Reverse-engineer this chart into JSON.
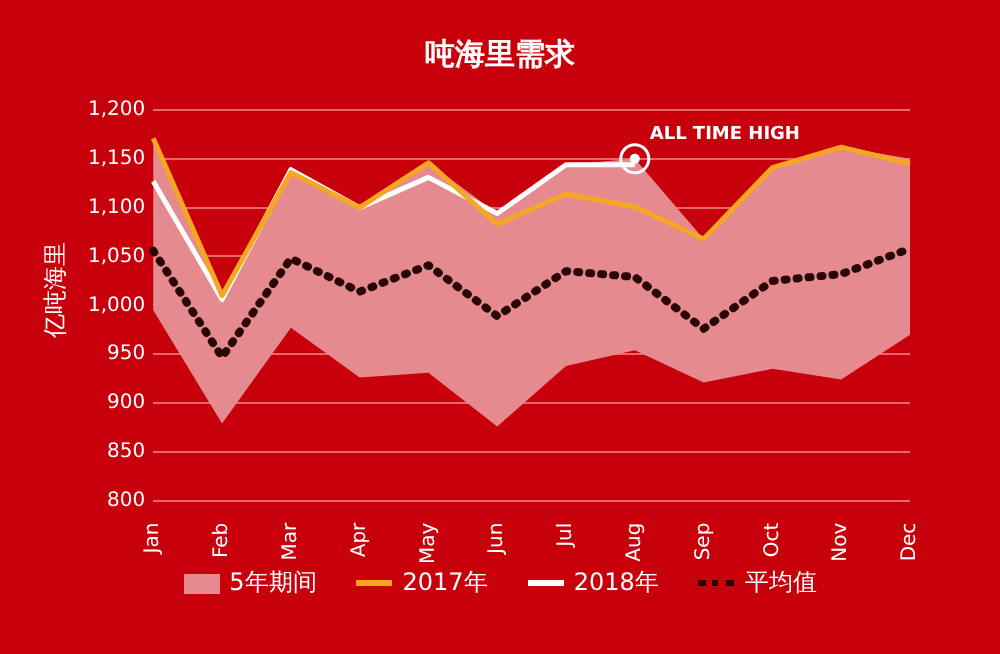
{
  "chart_data": {
    "type": "line",
    "title": "吨海里需求",
    "ylabel": "亿吨海里",
    "categories": [
      "Jan",
      "Feb",
      "Mar",
      "Apr",
      "May",
      "Jun",
      "Jul",
      "Aug",
      "Sep",
      "Oct",
      "Nov",
      "Dec"
    ],
    "series": [
      {
        "name": "5年期间",
        "type": "area",
        "color": "#e58a8e",
        "values": [
          null,
          null,
          null,
          null,
          null,
          null,
          null,
          null,
          null,
          null,
          null,
          null
        ],
        "upper": [
          1170,
          1010,
          1136,
          1100,
          1146,
          1094,
          1144,
          1150,
          1068,
          1141,
          1162,
          1150
        ],
        "lower": [
          995,
          879,
          977,
          926,
          931,
          876,
          938,
          954,
          921,
          935,
          924,
          970
        ]
      },
      {
        "name": "2017年",
        "color": "#f5a623",
        "values": [
          1171,
          1010,
          1136,
          1100,
          1146,
          1083,
          1114,
          1101,
          1068,
          1141,
          1162,
          1145
        ]
      },
      {
        "name": "2018年",
        "color": "#ffffff",
        "values": [
          1127,
          1006,
          1139,
          1100,
          1131,
          1094,
          1144,
          1144,
          null,
          null,
          null,
          null
        ]
      },
      {
        "name": "平均值",
        "color": "#2a0606",
        "line_style": "dotted",
        "values": [
          1056,
          947,
          1048,
          1014,
          1041,
          989,
          1035,
          1029,
          976,
          1025,
          1032,
          1058
        ]
      }
    ],
    "annotations": [
      {
        "text": "ALL TIME HIGH",
        "x": "Aug",
        "y": 1150
      }
    ],
    "ylim": [
      800,
      1200
    ],
    "yticks": [
      {
        "value": 800,
        "label": "800"
      },
      {
        "value": 850,
        "label": "850"
      },
      {
        "value": 900,
        "label": "900"
      },
      {
        "value": 950,
        "label": "950"
      },
      {
        "value": 1000,
        "label": "1,000"
      },
      {
        "value": 1050,
        "label": "1,050"
      },
      {
        "value": 1100,
        "label": "1,100"
      },
      {
        "value": 1150,
        "label": "1,150"
      },
      {
        "value": 1200,
        "label": "1,200"
      }
    ],
    "grid": "y",
    "legend": "bottom",
    "marker": "none"
  }
}
